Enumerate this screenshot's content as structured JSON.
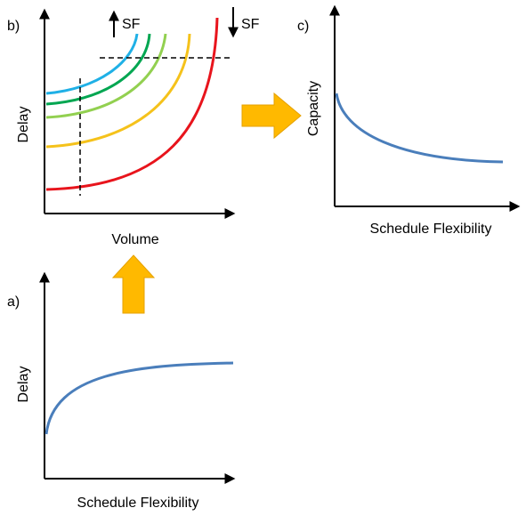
{
  "panels": [
    {
      "label": "b)",
      "y_axis": "Delay",
      "x_axis": "Volume",
      "arrow_up": "SF",
      "arrow_down": "SF"
    },
    {
      "label": "c)",
      "y_axis": "Capacity",
      "x_axis": "Schedule Flexibility"
    },
    {
      "label": "a)",
      "y_axis": "Delay",
      "x_axis": "Schedule Flexibility"
    }
  ]
}
